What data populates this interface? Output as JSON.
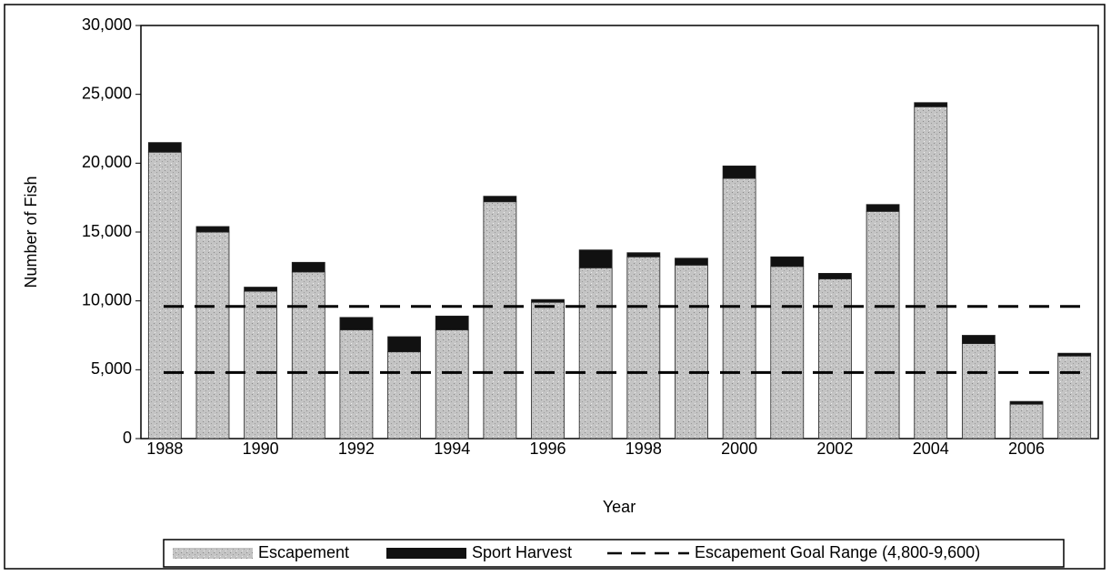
{
  "chart_data": {
    "type": "stacked_bar",
    "x_label": "Year",
    "y_label": "Number of Fish",
    "categories": [
      "1988",
      null,
      "1990",
      null,
      "1992",
      null,
      "1994",
      null,
      "1996",
      null,
      "1998",
      null,
      "2000",
      null,
      "2002",
      null,
      "2004",
      null,
      "2006",
      null
    ],
    "series": [
      {
        "name": "Escapement",
        "color": "#b5b5b5",
        "values": [
          20800,
          15000,
          10700,
          12100,
          7900,
          6300,
          7900,
          17200,
          9900,
          12400,
          13200,
          12600,
          18900,
          12500,
          11600,
          16500,
          24100,
          6900,
          2500,
          6000
        ]
      },
      {
        "name": "Sport Harvest",
        "color": "#111111",
        "values": [
          700,
          400,
          300,
          700,
          900,
          1100,
          1000,
          400,
          200,
          1300,
          300,
          500,
          900,
          700,
          400,
          500,
          300,
          600,
          200,
          200
        ]
      }
    ],
    "goal_range": {
      "name": "Escapement Goal Range (4,800-9,600)",
      "values": [
        4800,
        9600
      ],
      "color": "#000000"
    },
    "ylim": [
      0,
      30000
    ],
    "yticks": [
      0,
      {
        "value": 5000,
        "label": "5,000"
      },
      {
        "value": 10000,
        "label": "10,000"
      },
      {
        "value": 15000,
        "label": "15,000"
      },
      {
        "value": 20000,
        "label": "20,000"
      },
      {
        "value": 25000,
        "label": "25,000"
      },
      {
        "value": 30000,
        "label": "30,000"
      }
    ]
  }
}
